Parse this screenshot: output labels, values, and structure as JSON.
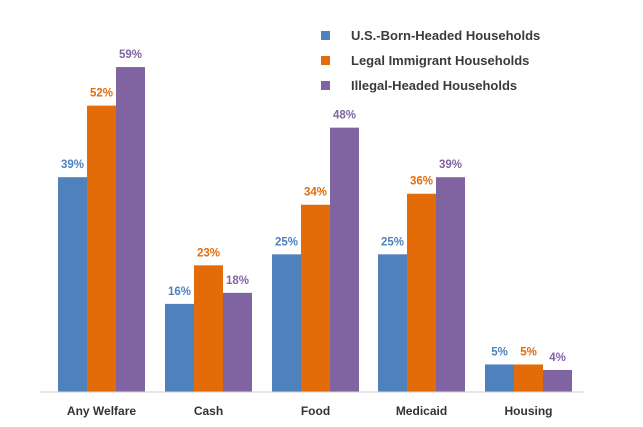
{
  "chart_data": {
    "type": "bar",
    "title": "",
    "xlabel": "",
    "ylabel": "",
    "ylim": [
      0,
      67
    ],
    "grid": false,
    "legend_position": "top-right",
    "categories": [
      "Any Welfare",
      "Cash",
      "Food",
      "Medicaid",
      "Housing"
    ],
    "series": [
      {
        "name": "U.S.-Born-Headed Households",
        "color": "#4F81BD",
        "values": [
          39,
          16,
          25,
          25,
          5
        ],
        "labels": [
          "39%",
          "16%",
          "25%",
          "25%",
          "5%"
        ]
      },
      {
        "name": "Legal Immigrant Households",
        "color": "#E36C09",
        "values": [
          52,
          23,
          34,
          36,
          5
        ],
        "labels": [
          "52%",
          "23%",
          "34%",
          "36%",
          "5%"
        ]
      },
      {
        "name": "Illegal-Headed Households",
        "color": "#8064A2",
        "values": [
          59,
          18,
          48,
          39,
          4
        ],
        "labels": [
          "59%",
          "18%",
          "48%",
          "39%",
          "4%"
        ]
      }
    ]
  }
}
